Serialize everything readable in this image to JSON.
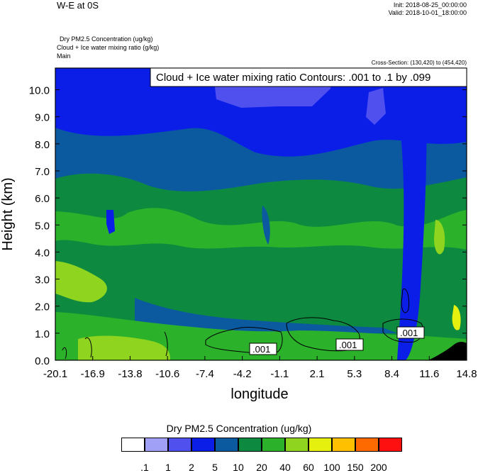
{
  "header": {
    "title": "W-E at 0S",
    "init": "Init: 2018-08-25_00:00:00",
    "valid": "Valid: 2018-10-01_18:00:00",
    "desc1": "Dry PM2.5 Concentration   (ug/kg)",
    "desc2": "Cloud + Ice water mixing ratio   (g/kg)",
    "desc3": "Main",
    "cross_section": "Cross-Section: (130,420) to (454,420)"
  },
  "chart_data": {
    "type": "heatmap",
    "contour_label": "Cloud + Ice water mixing ratio Contours: .001 to .1 by .099",
    "contour_value_labels": [
      ".001",
      ".001",
      ".001"
    ],
    "xlabel": "longitude",
    "ylabel": "Height (km)",
    "xlim": [
      -20.1,
      14.8
    ],
    "ylim": [
      0.0,
      10.8
    ],
    "x_ticks": [
      "-20.1",
      "-16.9",
      "-13.8",
      "-10.6",
      "-7.4",
      "-4.2",
      "-1.1",
      "2.1",
      "5.3",
      "8.4",
      "11.6",
      "14.8"
    ],
    "y_ticks": [
      "0.0",
      "1.0",
      "2.0",
      "3.0",
      "4.0",
      "5.0",
      "6.0",
      "7.0",
      "8.0",
      "9.0",
      "10.0"
    ],
    "colorbar": {
      "title": "Dry PM2.5 Concentration  (ug/kg)",
      "levels": [
        ".1",
        "1",
        "2",
        "5",
        "10",
        "20",
        "40",
        "60",
        "100",
        "150",
        "200"
      ],
      "colors": [
        "#ffffff",
        "#a0a0f7",
        "#5050ef",
        "#0a1ee8",
        "#0b5aa0",
        "#0d8a3f",
        "#2bb22a",
        "#8fd41e",
        "#e6f00f",
        "#ffc000",
        "#ff6a00",
        "#ff1010"
      ]
    }
  }
}
